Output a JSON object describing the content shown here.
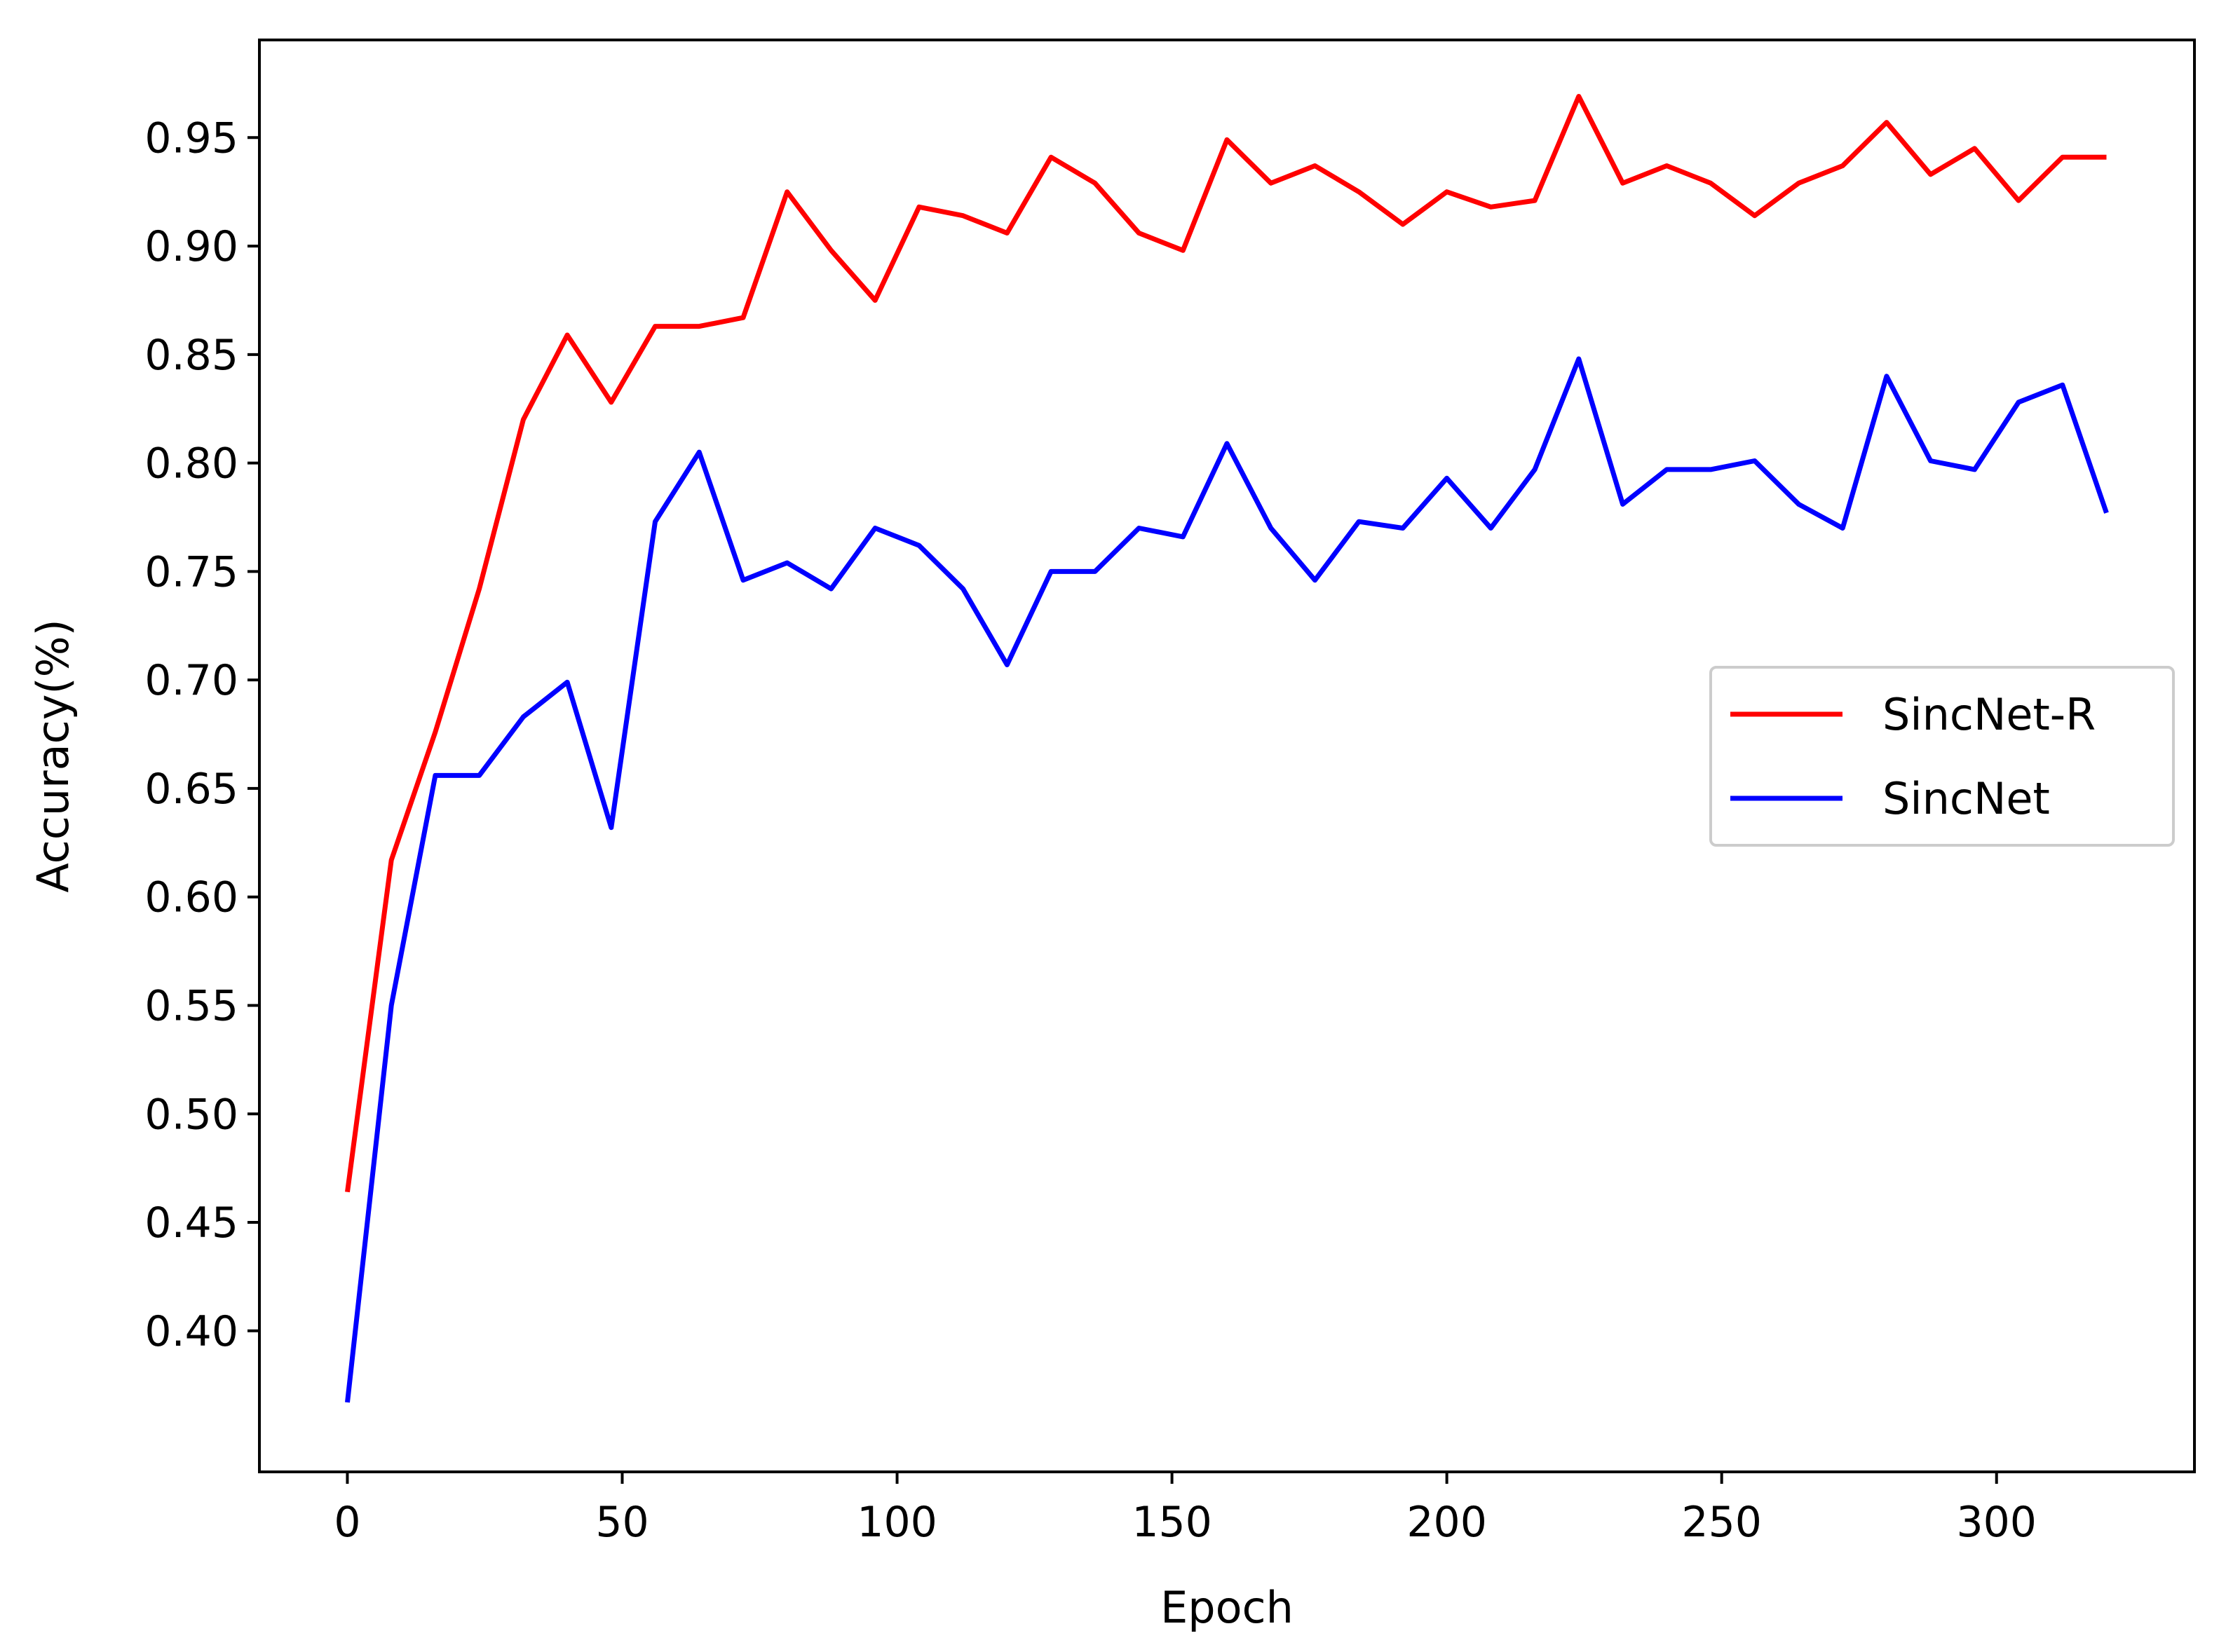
{
  "chart_data": {
    "type": "line",
    "title": "",
    "xlabel": "Epoch",
    "ylabel": "Accuracy(%)",
    "xlim": [
      -16,
      336
    ],
    "ylim": [
      0.335,
      0.995
    ],
    "xticks": [
      0,
      50,
      100,
      150,
      200,
      250,
      300
    ],
    "xtick_labels": [
      "0",
      "50",
      "100",
      "150",
      "200",
      "250",
      "300"
    ],
    "yticks": [
      0.4,
      0.45,
      0.5,
      0.55,
      0.6,
      0.65,
      0.7,
      0.75,
      0.8,
      0.85,
      0.9,
      0.95
    ],
    "ytick_labels": [
      "0.40",
      "0.45",
      "0.50",
      "0.55",
      "0.60",
      "0.65",
      "0.70",
      "0.75",
      "0.80",
      "0.85",
      "0.90",
      "0.95"
    ],
    "grid": false,
    "legend_position": "center-right",
    "x": [
      0,
      8,
      16,
      24,
      32,
      40,
      48,
      56,
      64,
      72,
      80,
      88,
      96,
      104,
      112,
      120,
      128,
      136,
      144,
      152,
      160,
      168,
      176,
      184,
      192,
      200,
      208,
      216,
      224,
      232,
      240,
      248,
      256,
      264,
      272,
      280,
      288,
      296,
      304,
      312,
      320
    ],
    "series": [
      {
        "name": "SincNet-R",
        "color": "#ff0000",
        "values": [
          0.464,
          0.617,
          0.676,
          0.742,
          0.82,
          0.859,
          0.828,
          0.863,
          0.863,
          0.867,
          0.925,
          0.898,
          0.875,
          0.918,
          0.914,
          0.906,
          0.941,
          0.929,
          0.906,
          0.898,
          0.949,
          0.929,
          0.937,
          0.925,
          0.91,
          0.925,
          0.918,
          0.921,
          0.969,
          0.929,
          0.937,
          0.929,
          0.914,
          0.929,
          0.937,
          0.957,
          0.933,
          0.945,
          0.921,
          0.941,
          0.941
        ]
      },
      {
        "name": "SincNet",
        "color": "#0000ff",
        "values": [
          0.367,
          0.55,
          0.656,
          0.656,
          0.683,
          0.699,
          0.632,
          0.773,
          0.805,
          0.746,
          0.754,
          0.742,
          0.77,
          0.762,
          0.742,
          0.707,
          0.75,
          0.75,
          0.77,
          0.766,
          0.809,
          0.77,
          0.746,
          0.773,
          0.77,
          0.793,
          0.77,
          0.797,
          0.848,
          0.781,
          0.797,
          0.797,
          0.801,
          0.781,
          0.77,
          0.84,
          0.801,
          0.797,
          0.828,
          0.836,
          0.777
        ]
      }
    ]
  }
}
